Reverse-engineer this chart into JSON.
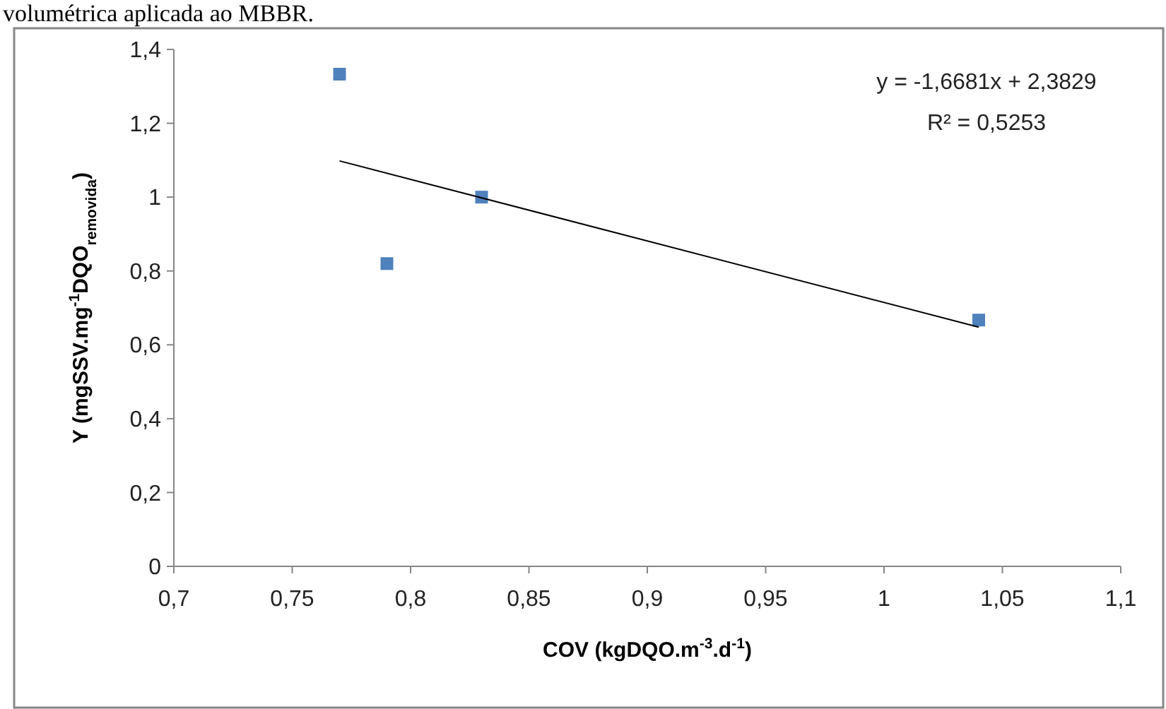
{
  "chart_data": {
    "type": "scatter",
    "xlabel": "COV (kgDQO.m$^{-3}$.d$^{-1}$)",
    "ylabel": "Y (mgSSV.mg$^{-1}$DQO$_{removida}$)",
    "annotations": [
      "volumétrica aplicada ao MBBR.",
      "y = -1,6681x + 2,3829",
      "R² = 0,5253"
    ],
    "xlim": [
      0.7,
      1.1
    ],
    "xticks": [
      {
        "value": 0.7,
        "label": "0,7"
      },
      {
        "value": 0.75,
        "label": "0,75"
      },
      {
        "value": 0.8,
        "label": "0,8"
      },
      {
        "value": 0.85,
        "label": "0,85"
      },
      {
        "value": 0.9,
        "label": "0,9"
      },
      {
        "value": 0.95,
        "label": "0,95"
      },
      1,
      {
        "value": 1.05,
        "label": "1,05"
      },
      {
        "value": 1.1,
        "label": "1,1"
      }
    ],
    "ylim": [
      0,
      1.4
    ],
    "yticks": [
      0,
      {
        "value": 0.2,
        "label": "0,2"
      },
      {
        "value": 0.4,
        "label": "0,4"
      },
      {
        "value": 0.6,
        "label": "0,6"
      },
      {
        "value": 0.8,
        "label": "0,8"
      },
      1,
      {
        "value": 1.2,
        "label": "1,2"
      },
      {
        "value": 1.4,
        "label": "1,4"
      }
    ],
    "grid": false,
    "marker": "square",
    "series": [
      {
        "color": "#4f81bd",
        "x": [
          0.77,
          0.79,
          0.83,
          1.04
        ],
        "values": [
          1.333,
          0.82,
          1.0,
          0.667
        ]
      },
      {
        "type": "line",
        "color": "#000000",
        "x": [
          0.77,
          1.04
        ],
        "values": [
          1.098,
          0.648
        ],
        "line_style": "solid",
        "marker": "none"
      }
    ]
  }
}
